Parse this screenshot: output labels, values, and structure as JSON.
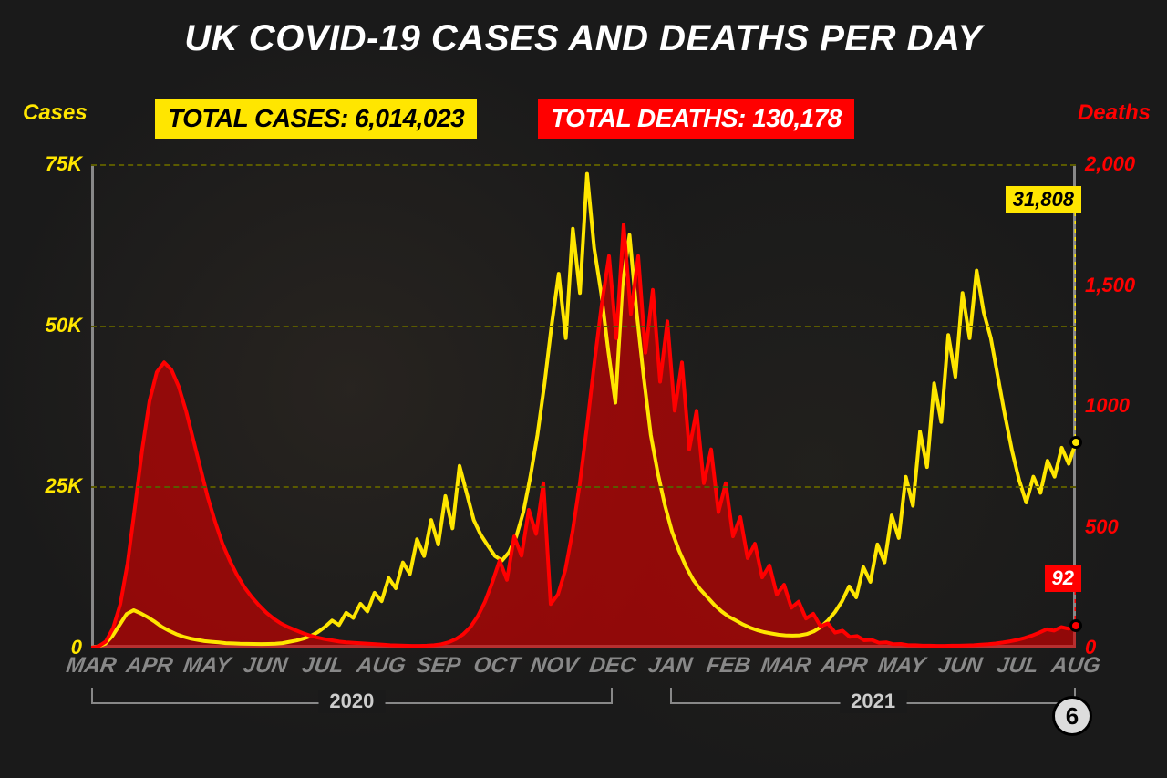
{
  "title": "UK COVID-19 CASES AND DEATHS PER DAY",
  "left_axis": {
    "label": "Cases",
    "color": "#ffe600",
    "ticks": [
      "0",
      "25K",
      "50K",
      "75K"
    ],
    "tick_values": [
      0,
      25000,
      50000,
      75000
    ],
    "max": 75000
  },
  "right_axis": {
    "label": "Deaths",
    "color": "#ff0000",
    "ticks": [
      "0",
      "500",
      "1000",
      "1,500",
      "2,000"
    ],
    "tick_values": [
      0,
      500,
      1000,
      1500,
      2000
    ],
    "max": 2000
  },
  "badges": {
    "cases": "TOTAL CASES: 6,014,023",
    "deaths": "TOTAL DEATHS: 130,178"
  },
  "callouts": {
    "cases": {
      "label": "31,808",
      "value": 31808
    },
    "deaths": {
      "label": "92",
      "value": 92
    }
  },
  "x_months": [
    "MAR",
    "APR",
    "MAY",
    "JUN",
    "JUL",
    "AUG",
    "SEP",
    "OCT",
    "NOV",
    "DEC",
    "JAN",
    "FEB",
    "MAR",
    "APR",
    "MAY",
    "JUN",
    "JUL",
    "AUG"
  ],
  "year_brackets": [
    {
      "label": "2020",
      "from": 0,
      "to": 9
    },
    {
      "label": "2021",
      "from": 10,
      "to": 17
    }
  ],
  "circle_badge": "6",
  "cases_series": {
    "color": "#ffe600",
    "fill_opacity": 0,
    "line_width": 4,
    "values": [
      0,
      200,
      600,
      1800,
      3500,
      5200,
      5800,
      5300,
      4700,
      4000,
      3200,
      2600,
      2100,
      1700,
      1400,
      1200,
      1000,
      900,
      800,
      700,
      650,
      600,
      580,
      560,
      550,
      560,
      600,
      700,
      900,
      1100,
      1400,
      1800,
      2400,
      3200,
      4200,
      3500,
      5400,
      4600,
      6800,
      5600,
      8500,
      7200,
      10800,
      9200,
      13200,
      11400,
      16800,
      14200,
      19800,
      16000,
      23500,
      18500,
      28200,
      24000,
      19800,
      17500,
      15800,
      14200,
      13500,
      14800,
      17200,
      21000,
      26500,
      33000,
      41000,
      50000,
      58000,
      48000,
      65000,
      55000,
      73500,
      62000,
      55000,
      46000,
      38000,
      56000,
      64000,
      52000,
      42000,
      33000,
      27000,
      22000,
      18000,
      15000,
      12500,
      10500,
      9000,
      7800,
      6600,
      5600,
      4800,
      4200,
      3600,
      3100,
      2700,
      2400,
      2200,
      2000,
      1900,
      1850,
      1900,
      2100,
      2500,
      3200,
      4200,
      5500,
      7200,
      9500,
      7800,
      12500,
      10200,
      16000,
      13200,
      20500,
      17000,
      26500,
      22000,
      33500,
      28000,
      41000,
      35000,
      48500,
      42000,
      55000,
      48000,
      58500,
      52000,
      48000,
      42000,
      36000,
      30500,
      26000,
      22500,
      26500,
      24000,
      29000,
      26500,
      31000,
      28500,
      31808
    ]
  },
  "deaths_series": {
    "color": "#ff0000",
    "fill_color": "#d10000",
    "fill_opacity": 0.65,
    "line_width": 4,
    "values": [
      0,
      5,
      25,
      80,
      180,
      350,
      580,
      820,
      1020,
      1140,
      1180,
      1150,
      1080,
      980,
      860,
      740,
      620,
      520,
      430,
      360,
      300,
      250,
      210,
      175,
      145,
      120,
      100,
      85,
      72,
      60,
      50,
      42,
      35,
      30,
      25,
      22,
      20,
      18,
      16,
      14,
      12,
      10,
      9,
      8,
      7,
      7,
      8,
      10,
      14,
      22,
      35,
      55,
      85,
      130,
      190,
      270,
      360,
      280,
      460,
      380,
      570,
      470,
      680,
      180,
      220,
      320,
      480,
      680,
      920,
      1180,
      1420,
      1620,
      1280,
      1750,
      1380,
      1620,
      1220,
      1480,
      1100,
      1350,
      980,
      1180,
      820,
      980,
      680,
      820,
      560,
      680,
      460,
      540,
      370,
      430,
      290,
      340,
      220,
      260,
      165,
      190,
      120,
      140,
      88,
      100,
      62,
      70,
      44,
      48,
      30,
      32,
      20,
      22,
      14,
      15,
      10,
      10,
      8,
      8,
      7,
      7,
      8,
      8,
      9,
      10,
      12,
      14,
      17,
      21,
      26,
      32,
      40,
      50,
      62,
      76,
      70,
      85,
      78,
      92
    ]
  },
  "grid": {
    "color": "#5a5a00",
    "dash": "6,6"
  },
  "background": "#1a1a1a",
  "chart_background": "transparent"
}
